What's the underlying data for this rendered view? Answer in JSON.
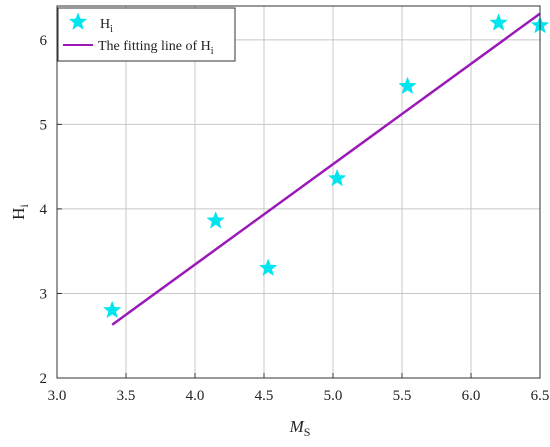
{
  "chart_data": {
    "type": "scatter",
    "title": "",
    "xlabel": "M",
    "xlabel_sub": "S",
    "ylabel": "H",
    "ylabel_sub": "i",
    "xlim": [
      3.0,
      6.5
    ],
    "ylim": [
      2,
      6.4
    ],
    "xticks": [
      3.0,
      3.5,
      4.0,
      4.5,
      5.0,
      5.5,
      6.0,
      6.5
    ],
    "xtick_labels": [
      "3.0",
      "3.5",
      "4.0",
      "4.5",
      "5.0",
      "5.5",
      "6.0",
      "6.5"
    ],
    "yticks": [
      2,
      3,
      4,
      5,
      6
    ],
    "ytick_labels": [
      "2",
      "3",
      "4",
      "5",
      "6"
    ],
    "grid": true,
    "legend_position": "top-left",
    "series": [
      {
        "name": "H",
        "name_sub": "i",
        "kind": "scatter",
        "marker": "star",
        "color": "#00e5ee",
        "x": [
          3.4,
          4.15,
          4.53,
          5.03,
          5.54,
          6.2,
          6.5
        ],
        "y": [
          2.8,
          3.86,
          3.3,
          4.36,
          5.45,
          6.2,
          6.17
        ]
      },
      {
        "name": "The fitting line of H",
        "name_sub": "i",
        "kind": "line",
        "color": "#9b19b8",
        "x": [
          3.4,
          6.5
        ],
        "y": [
          2.63,
          6.31
        ]
      }
    ]
  }
}
